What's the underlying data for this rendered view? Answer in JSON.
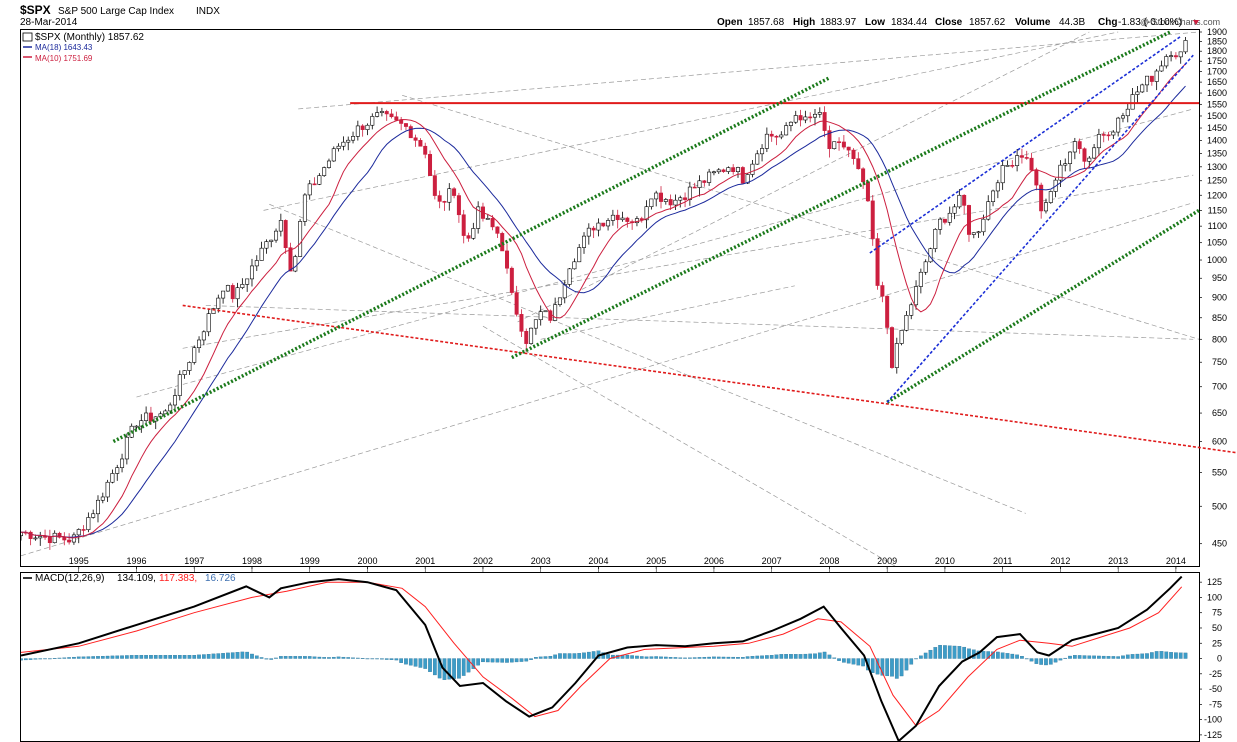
{
  "header": {
    "symbol": "$SPX",
    "name": "S&P 500 Large Cap Index",
    "exchange": "INDX",
    "date": "28-Mar-2014",
    "watermark": "@ StockCharts.com",
    "quote": {
      "open_label": "Open",
      "open": "1857.68",
      "high_label": "High",
      "high": "1883.97",
      "low_label": "Low",
      "low": "1834.44",
      "close_label": "Close",
      "close": "1857.62",
      "volume_label": "Volume",
      "volume": "44.3B",
      "chg_label": "Chg",
      "chg": "-1.83 (-0.10%)"
    }
  },
  "legend": {
    "price": "$SPX (Monthly) 1857.62",
    "ma18": "MA(18) 1643.43",
    "ma10": "MA(10) 1751.69"
  },
  "macd_legend": {
    "label": "MACD(12,26,9)",
    "macd": "134.109,",
    "signal": "117.383,",
    "hist": "16.726"
  },
  "colors": {
    "up": "#ffffff",
    "down": "#cc1f3f",
    "ma18": "#1c2a9c",
    "ma10": "#cc1f3f",
    "resistance": "#e01b1b",
    "channel": "#1b7a1b",
    "wedge": "#1b2fd6",
    "macd_line": "#000000",
    "signal_line": "#ff2020",
    "hist": "#3d9cc7"
  },
  "chart_data": [
    {
      "type": "candlestick",
      "title": "$SPX (Monthly)",
      "scale": "log",
      "x_ticks": [
        "1995",
        "1996",
        "1997",
        "1998",
        "1999",
        "2000",
        "2001",
        "2002",
        "2003",
        "2004",
        "2005",
        "2006",
        "2007",
        "2008",
        "2009",
        "2010",
        "2011",
        "2012",
        "2013",
        "2014"
      ],
      "y_ticks": [
        450,
        500,
        550,
        600,
        650,
        700,
        750,
        800,
        850,
        900,
        950,
        1000,
        1050,
        1100,
        1150,
        1200,
        1250,
        1300,
        1350,
        1400,
        1450,
        1500,
        1550,
        1600,
        1650,
        1700,
        1750,
        1800,
        1850,
        1900
      ],
      "ylim": [
        425,
        1900
      ],
      "xlim": [
        1994.0,
        2014.4
      ],
      "anchor_closes": [
        [
          1994.0,
          465
        ],
        [
          1994.5,
          458
        ],
        [
          1994.9,
          455
        ],
        [
          1995.3,
          500
        ],
        [
          1995.7,
          570
        ],
        [
          1996.0,
          635
        ],
        [
          1996.5,
          650
        ],
        [
          1997.0,
          780
        ],
        [
          1997.5,
          930
        ],
        [
          1997.7,
          900
        ],
        [
          1998.0,
          980
        ],
        [
          1998.5,
          1120
        ],
        [
          1998.7,
          960
        ],
        [
          1998.9,
          1190
        ],
        [
          1999.5,
          1380
        ],
        [
          1999.9,
          1460
        ],
        [
          2000.2,
          1500
        ],
        [
          2000.7,
          1450
        ],
        [
          2001.0,
          1360
        ],
        [
          2001.2,
          1160
        ],
        [
          2001.5,
          1220
        ],
        [
          2001.7,
          1040
        ],
        [
          2001.9,
          1145
        ],
        [
          2002.3,
          1070
        ],
        [
          2002.5,
          900
        ],
        [
          2002.75,
          800
        ],
        [
          2003.0,
          860
        ],
        [
          2003.2,
          850
        ],
        [
          2003.5,
          990
        ],
        [
          2003.9,
          1100
        ],
        [
          2004.3,
          1140
        ],
        [
          2004.7,
          1110
        ],
        [
          2004.9,
          1210
        ],
        [
          2005.3,
          1180
        ],
        [
          2005.9,
          1260
        ],
        [
          2006.3,
          1310
        ],
        [
          2006.5,
          1260
        ],
        [
          2006.9,
          1420
        ],
        [
          2007.2,
          1420
        ],
        [
          2007.45,
          1520
        ],
        [
          2007.6,
          1470
        ],
        [
          2007.8,
          1520
        ],
        [
          2008.0,
          1370
        ],
        [
          2008.3,
          1380
        ],
        [
          2008.5,
          1280
        ],
        [
          2008.7,
          1160
        ],
        [
          2008.8,
          940
        ],
        [
          2008.95,
          880
        ],
        [
          2009.1,
          735
        ],
        [
          2009.2,
          800
        ],
        [
          2009.5,
          920
        ],
        [
          2009.9,
          1110
        ],
        [
          2010.3,
          1190
        ],
        [
          2010.45,
          1060
        ],
        [
          2010.6,
          1100
        ],
        [
          2010.9,
          1260
        ],
        [
          2011.3,
          1360
        ],
        [
          2011.5,
          1300
        ],
        [
          2011.6,
          1210
        ],
        [
          2011.7,
          1130
        ],
        [
          2011.9,
          1250
        ],
        [
          2012.25,
          1400
        ],
        [
          2012.4,
          1310
        ],
        [
          2012.7,
          1440
        ],
        [
          2012.9,
          1420
        ],
        [
          2013.0,
          1500
        ],
        [
          2013.4,
          1630
        ],
        [
          2013.6,
          1680
        ],
        [
          2013.9,
          1810
        ],
        [
          2014.1,
          1780
        ],
        [
          2014.2,
          1860
        ]
      ],
      "moving_averages": [
        {
          "name": "MA(18)",
          "value": 1643.43
        },
        {
          "name": "MA(10)",
          "value": 1751.69
        }
      ],
      "annotations": [
        {
          "kind": "horizontal",
          "color": "red",
          "style": "solid",
          "value": 1555,
          "from": 1999.7,
          "to": 2014.4
        },
        {
          "kind": "trendline",
          "color": "red",
          "style": "dotted",
          "p1": [
            1996.8,
            880
          ],
          "p2": [
            2014.4,
            590
          ]
        },
        {
          "kind": "trendline",
          "color": "green",
          "style": "dotted",
          "p1": [
            1995.6,
            600
          ],
          "p2": [
            2008.0,
            1670
          ]
        },
        {
          "kind": "trendline",
          "color": "green",
          "style": "dotted",
          "p1": [
            2002.5,
            760
          ],
          "p2": [
            2013.9,
            1900
          ]
        },
        {
          "kind": "trendline",
          "color": "green",
          "style": "dotted",
          "p1": [
            2009.0,
            670
          ],
          "p2": [
            2014.4,
            1150
          ]
        },
        {
          "kind": "trendline",
          "color": "blue",
          "style": "dotted",
          "p1": [
            2009.0,
            670
          ],
          "p2": [
            2014.3,
            1780
          ]
        },
        {
          "kind": "trendline",
          "color": "blue",
          "style": "dotted",
          "p1": [
            2008.7,
            1020
          ],
          "p2": [
            2014.1,
            1880
          ]
        }
      ]
    },
    {
      "type": "line",
      "title": "MACD(12,26,9)",
      "y_ticks": [
        125,
        100,
        75,
        50,
        25,
        0,
        -25,
        -50,
        -75,
        -100,
        -125
      ],
      "ylim": [
        -135,
        140
      ],
      "series": [
        {
          "name": "MACD",
          "points": [
            [
              1994.0,
              5
            ],
            [
              1995.0,
              25
            ],
            [
              1996.0,
              55
            ],
            [
              1997.0,
              85
            ],
            [
              1997.9,
              118
            ],
            [
              1998.3,
              100
            ],
            [
              1998.5,
              115
            ],
            [
              1999.0,
              125
            ],
            [
              1999.5,
              130
            ],
            [
              2000.0,
              125
            ],
            [
              2000.5,
              112
            ],
            [
              2001.0,
              55
            ],
            [
              2001.3,
              -15
            ],
            [
              2001.6,
              -45
            ],
            [
              2002.0,
              -40
            ],
            [
              2002.4,
              -70
            ],
            [
              2002.8,
              -95
            ],
            [
              2003.2,
              -80
            ],
            [
              2003.6,
              -40
            ],
            [
              2004.0,
              5
            ],
            [
              2004.5,
              18
            ],
            [
              2005.0,
              22
            ],
            [
              2005.5,
              20
            ],
            [
              2006.0,
              25
            ],
            [
              2006.5,
              28
            ],
            [
              2007.0,
              45
            ],
            [
              2007.5,
              65
            ],
            [
              2007.9,
              85
            ],
            [
              2008.2,
              50
            ],
            [
              2008.6,
              5
            ],
            [
              2008.9,
              -70
            ],
            [
              2009.2,
              -135
            ],
            [
              2009.5,
              -110
            ],
            [
              2009.9,
              -45
            ],
            [
              2010.3,
              -5
            ],
            [
              2010.6,
              10
            ],
            [
              2010.9,
              35
            ],
            [
              2011.3,
              40
            ],
            [
              2011.6,
              10
            ],
            [
              2011.8,
              5
            ],
            [
              2012.2,
              30
            ],
            [
              2012.6,
              40
            ],
            [
              2013.0,
              50
            ],
            [
              2013.5,
              80
            ],
            [
              2013.9,
              115
            ],
            [
              2014.1,
              134.109
            ]
          ]
        },
        {
          "name": "Signal",
          "points": [
            [
              1994.0,
              10
            ],
            [
              1995.0,
              20
            ],
            [
              1996.0,
              45
            ],
            [
              1997.0,
              75
            ],
            [
              1998.0,
              100
            ],
            [
              1998.6,
              110
            ],
            [
              1999.3,
              125
            ],
            [
              2000.0,
              125
            ],
            [
              2000.6,
              115
            ],
            [
              2001.0,
              85
            ],
            [
              2001.5,
              25
            ],
            [
              2002.0,
              -30
            ],
            [
              2002.5,
              -65
            ],
            [
              2002.9,
              -95
            ],
            [
              2003.3,
              -85
            ],
            [
              2003.7,
              -45
            ],
            [
              2004.2,
              0
            ],
            [
              2004.8,
              15
            ],
            [
              2005.5,
              18
            ],
            [
              2006.0,
              20
            ],
            [
              2006.6,
              25
            ],
            [
              2007.2,
              40
            ],
            [
              2007.8,
              65
            ],
            [
              2008.2,
              60
            ],
            [
              2008.7,
              20
            ],
            [
              2009.1,
              -60
            ],
            [
              2009.5,
              -110
            ],
            [
              2009.9,
              -85
            ],
            [
              2010.4,
              -30
            ],
            [
              2010.9,
              15
            ],
            [
              2011.3,
              30
            ],
            [
              2011.8,
              25
            ],
            [
              2012.2,
              20
            ],
            [
              2012.7,
              35
            ],
            [
              2013.2,
              50
            ],
            [
              2013.7,
              75
            ],
            [
              2014.1,
              117.383
            ]
          ]
        },
        {
          "name": "Histogram",
          "value": 16.726
        }
      ]
    }
  ]
}
